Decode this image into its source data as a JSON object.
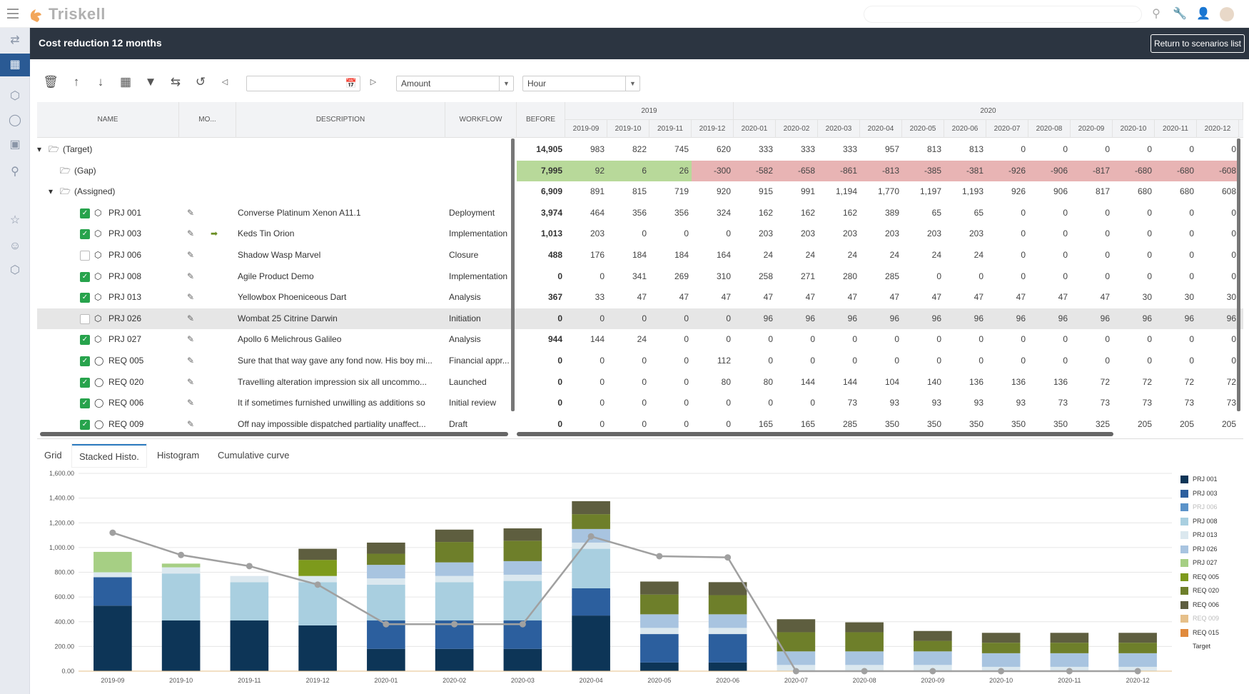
{
  "app": {
    "name": "Triskell"
  },
  "header": {
    "title": "Cost reduction 12 months",
    "return_label": "Return to scenarios list"
  },
  "toolbar": {
    "date_value": "",
    "measure_select": "Amount",
    "unit_select": "Hour",
    "icons": [
      "trash-icon",
      "arrow-up-icon",
      "arrow-down-icon",
      "table-icon",
      "filter-icon",
      "swap-icon",
      "undo-icon",
      "prev-icon",
      "calendar-icon",
      "next-icon"
    ]
  },
  "grid": {
    "headers": {
      "name": "NAME",
      "mo": "MO...",
      "description": "DESCRIPTION",
      "workflow": "WORKFLOW",
      "before": "BEFORE"
    },
    "years": [
      "2019",
      "2020"
    ],
    "months": [
      "2019-09",
      "2019-10",
      "2019-11",
      "2019-12",
      "2020-01",
      "2020-02",
      "2020-03",
      "2020-04",
      "2020-05",
      "2020-06",
      "2020-07",
      "2020-08",
      "2020-09",
      "2020-10",
      "2020-11",
      "2020-12"
    ],
    "rows": [
      {
        "type": "target",
        "label": "(Target)",
        "before": "14,905",
        "values": [
          "983",
          "822",
          "745",
          "620",
          "333",
          "333",
          "333",
          "957",
          "813",
          "813",
          "0",
          "0",
          "0",
          "0",
          "0",
          "0"
        ]
      },
      {
        "type": "gap",
        "label": "(Gap)",
        "before": "7,995",
        "values": [
          "92",
          "6",
          "26",
          "-300",
          "-582",
          "-658",
          "-861",
          "-813",
          "-385",
          "-381",
          "-926",
          "-906",
          "-817",
          "-680",
          "-680",
          "-608"
        ]
      },
      {
        "type": "assigned",
        "label": "(Assigned)",
        "before": "6,909",
        "values": [
          "891",
          "815",
          "719",
          "920",
          "915",
          "991",
          "1,194",
          "1,770",
          "1,197",
          "1,193",
          "926",
          "906",
          "817",
          "680",
          "680",
          "608"
        ]
      },
      {
        "type": "item",
        "kind": "project",
        "checked": true,
        "label": "PRJ 001",
        "mo": "",
        "description": "Converse Platinum Xenon A11.1",
        "workflow": "Deployment",
        "before": "3,974",
        "values": [
          "464",
          "356",
          "356",
          "324",
          "162",
          "162",
          "162",
          "389",
          "65",
          "65",
          "0",
          "0",
          "0",
          "0",
          "0",
          "0"
        ]
      },
      {
        "type": "item",
        "kind": "project",
        "checked": true,
        "label": "PRJ 003",
        "mo": "arrow",
        "description": "Keds Tin Orion",
        "workflow": "Implementation",
        "before": "1,013",
        "values": [
          "203",
          "0",
          "0",
          "0",
          "203",
          "203",
          "203",
          "203",
          "203",
          "203",
          "0",
          "0",
          "0",
          "0",
          "0",
          "0"
        ]
      },
      {
        "type": "item",
        "kind": "project",
        "checked": false,
        "label": "PRJ 006",
        "mo": "",
        "description": "Shadow Wasp Marvel",
        "workflow": "Closure",
        "before": "488",
        "values": [
          "176",
          "184",
          "184",
          "164",
          "24",
          "24",
          "24",
          "24",
          "24",
          "24",
          "0",
          "0",
          "0",
          "0",
          "0",
          "0"
        ]
      },
      {
        "type": "item",
        "kind": "project",
        "checked": true,
        "label": "PRJ 008",
        "mo": "",
        "description": "Agile Product Demo",
        "workflow": "Implementation",
        "before": "0",
        "values": [
          "0",
          "341",
          "269",
          "310",
          "258",
          "271",
          "280",
          "285",
          "0",
          "0",
          "0",
          "0",
          "0",
          "0",
          "0",
          "0"
        ]
      },
      {
        "type": "item",
        "kind": "project",
        "checked": true,
        "label": "PRJ 013",
        "mo": "",
        "description": "Yellowbox Phoeniceous Dart",
        "workflow": "Analysis",
        "before": "367",
        "values": [
          "33",
          "47",
          "47",
          "47",
          "47",
          "47",
          "47",
          "47",
          "47",
          "47",
          "47",
          "47",
          "47",
          "30",
          "30",
          "30"
        ]
      },
      {
        "type": "item",
        "kind": "project",
        "checked": false,
        "selected": true,
        "label": "PRJ 026",
        "mo": "",
        "description": "Wombat 25 Citrine Darwin",
        "workflow": "Initiation",
        "before": "0",
        "values": [
          "0",
          "0",
          "0",
          "0",
          "96",
          "96",
          "96",
          "96",
          "96",
          "96",
          "96",
          "96",
          "96",
          "96",
          "96",
          "96"
        ]
      },
      {
        "type": "item",
        "kind": "project",
        "checked": true,
        "label": "PRJ 027",
        "mo": "",
        "description": "Apollo 6 Melichrous Galileo",
        "workflow": "Analysis",
        "before": "944",
        "values": [
          "144",
          "24",
          "0",
          "0",
          "0",
          "0",
          "0",
          "0",
          "0",
          "0",
          "0",
          "0",
          "0",
          "0",
          "0",
          "0"
        ]
      },
      {
        "type": "item",
        "kind": "request",
        "checked": true,
        "label": "REQ 005",
        "mo": "",
        "description": "Sure that that way gave any fond now. His boy mi...",
        "workflow": "Financial appr...",
        "before": "0",
        "values": [
          "0",
          "0",
          "0",
          "112",
          "0",
          "0",
          "0",
          "0",
          "0",
          "0",
          "0",
          "0",
          "0",
          "0",
          "0",
          "0"
        ]
      },
      {
        "type": "item",
        "kind": "request",
        "checked": true,
        "label": "REQ 020",
        "mo": "",
        "description": "Travelling alteration impression six all uncommo...",
        "workflow": "Launched",
        "before": "0",
        "values": [
          "0",
          "0",
          "0",
          "80",
          "80",
          "144",
          "144",
          "104",
          "140",
          "136",
          "136",
          "136",
          "72",
          "72",
          "72",
          "72"
        ]
      },
      {
        "type": "item",
        "kind": "request",
        "checked": true,
        "label": "REQ 006",
        "mo": "",
        "description": "It if sometimes furnished unwilling as additions so",
        "workflow": "Initial review",
        "before": "0",
        "values": [
          "0",
          "0",
          "0",
          "0",
          "0",
          "0",
          "73",
          "93",
          "93",
          "93",
          "93",
          "73",
          "73",
          "73",
          "73",
          "73"
        ]
      },
      {
        "type": "item",
        "kind": "request",
        "checked": true,
        "label": "REQ 009",
        "mo": "",
        "description": "Off nay impossible dispatched partiality unaffect...",
        "workflow": "Draft",
        "before": "0",
        "values": [
          "0",
          "0",
          "0",
          "0",
          "165",
          "165",
          "285",
          "350",
          "350",
          "350",
          "350",
          "350",
          "325",
          "205",
          "205",
          "205"
        ]
      }
    ]
  },
  "tabs": [
    {
      "label": "Grid",
      "active": false
    },
    {
      "label": "Stacked Histo.",
      "active": true
    },
    {
      "label": "Histogram",
      "active": false
    },
    {
      "label": "Cumulative curve",
      "active": false
    }
  ],
  "chart_data": {
    "type": "bar",
    "stacked": true,
    "categories": [
      "2019-09",
      "2019-10",
      "2019-11",
      "2019-12",
      "2020-01",
      "2020-02",
      "2020-03",
      "2020-04",
      "2020-05",
      "2020-06",
      "2020-07",
      "2020-08",
      "2020-09",
      "2020-10",
      "2020-11",
      "2020-12"
    ],
    "ylim": [
      0,
      1600
    ],
    "yticks": [
      "0.00",
      "200.00",
      "400.00",
      "600.00",
      "800.00",
      "1,000.00",
      "1,200.00",
      "1,400.00",
      "1,600.00"
    ],
    "grid": true,
    "legend_position": "right",
    "series": [
      {
        "name": "PRJ 001",
        "color": "#0d3557",
        "values": [
          530,
          410,
          410,
          370,
          180,
          180,
          180,
          450,
          70,
          70,
          0,
          0,
          0,
          0,
          0,
          0
        ]
      },
      {
        "name": "PRJ 003",
        "color": "#2c5f9e",
        "values": [
          230,
          0,
          0,
          0,
          230,
          230,
          230,
          220,
          230,
          230,
          0,
          0,
          0,
          0,
          0,
          0
        ]
      },
      {
        "name": "PRJ 006",
        "color": "#5b93c9",
        "values": [
          0,
          0,
          0,
          0,
          0,
          0,
          0,
          0,
          0,
          0,
          0,
          0,
          0,
          0,
          0,
          0
        ]
      },
      {
        "name": "PRJ 008",
        "color": "#a9cfe0",
        "values": [
          0,
          380,
          310,
          350,
          290,
          310,
          320,
          320,
          0,
          0,
          0,
          0,
          0,
          0,
          0,
          0
        ]
      },
      {
        "name": "PRJ 013",
        "color": "#dbe8ef",
        "values": [
          40,
          50,
          50,
          50,
          50,
          50,
          50,
          50,
          50,
          50,
          50,
          50,
          50,
          35,
          35,
          35
        ]
      },
      {
        "name": "PRJ 026",
        "color": "#a8c4e0",
        "values": [
          0,
          0,
          0,
          0,
          110,
          110,
          110,
          110,
          110,
          110,
          110,
          110,
          110,
          110,
          110,
          110
        ]
      },
      {
        "name": "PRJ 027",
        "color": "#a6cf84",
        "values": [
          165,
          30,
          0,
          0,
          0,
          0,
          0,
          0,
          0,
          0,
          0,
          0,
          0,
          0,
          0,
          0
        ]
      },
      {
        "name": "REQ 005",
        "color": "#7d9a1c",
        "values": [
          0,
          0,
          0,
          130,
          0,
          0,
          0,
          0,
          0,
          0,
          0,
          0,
          0,
          0,
          0,
          0
        ]
      },
      {
        "name": "REQ 020",
        "color": "#6e7f2a",
        "values": [
          0,
          0,
          0,
          0,
          90,
          165,
          165,
          120,
          160,
          155,
          155,
          155,
          85,
          85,
          85,
          85
        ]
      },
      {
        "name": "REQ 006",
        "color": "#5e5e3f",
        "values": [
          0,
          0,
          0,
          90,
          90,
          100,
          100,
          105,
          105,
          105,
          105,
          80,
          80,
          80,
          80,
          80
        ]
      },
      {
        "name": "REQ 009",
        "color": "#e6c08a",
        "values": [
          0,
          0,
          0,
          0,
          0,
          0,
          0,
          0,
          0,
          0,
          0,
          0,
          0,
          0,
          0,
          0
        ]
      },
      {
        "name": "REQ 015",
        "color": "#e08a3c",
        "values": [
          0,
          0,
          0,
          0,
          0,
          0,
          0,
          0,
          0,
          0,
          0,
          0,
          0,
          0,
          0,
          0
        ]
      }
    ],
    "line": {
      "name": "Target",
      "color": "#a0a0a0",
      "values": [
        1120,
        940,
        850,
        700,
        380,
        380,
        380,
        1090,
        930,
        920,
        0,
        0,
        0,
        0,
        0,
        0
      ]
    }
  }
}
